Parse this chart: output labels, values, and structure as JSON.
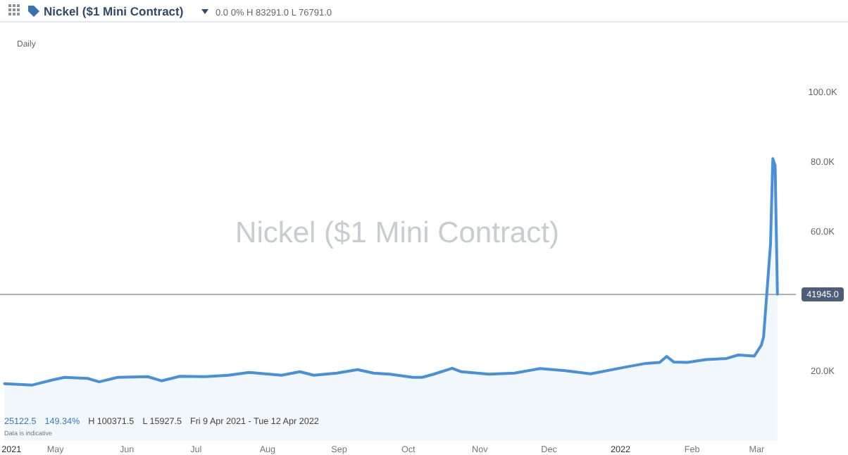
{
  "chart_data": {
    "type": "area",
    "title": "Nickel ($1 Mini Contract)",
    "subtitle": "0.0  0% H 83291.0 L 76791.0",
    "annotations": [
      "Daily",
      "Nickel ($1 Mini Contract)",
      "25122.5",
      "149.34%",
      "H 100371.5",
      "L 15927.5",
      "Fri 9 Apr 2021 - Tue 12 Apr 2022",
      "Data is indicative"
    ],
    "x": [
      "2021-04-09",
      "2021-04-21",
      "2021-04-30",
      "2021-05-05",
      "2021-05-15",
      "2021-05-20",
      "2021-05-28",
      "2021-06-10",
      "2021-06-16",
      "2021-06-24",
      "2021-07-05",
      "2021-07-15",
      "2021-07-24",
      "2021-08-07",
      "2021-08-15",
      "2021-08-21",
      "2021-08-31",
      "2021-09-09",
      "2021-09-16",
      "2021-09-23",
      "2021-10-03",
      "2021-10-07",
      "2021-10-12",
      "2021-10-20",
      "2021-10-24",
      "2021-11-05",
      "2021-11-16",
      "2021-11-27",
      "2021-12-08",
      "2021-12-19",
      "2022-01-02",
      "2022-01-12",
      "2022-01-18",
      "2022-01-21",
      "2022-01-24",
      "2022-01-30",
      "2022-02-07",
      "2022-02-16",
      "2022-02-21",
      "2022-02-28",
      "2022-03-03",
      "2022-03-04",
      "2022-03-07",
      "2022-03-08",
      "2022-03-09",
      "2022-03-10"
    ],
    "series": [
      {
        "color": "#4a90d9",
        "values": [
          16400,
          16000,
          17500,
          18200,
          17900,
          16900,
          18200,
          18400,
          17200,
          18500,
          18400,
          18800,
          19600,
          18800,
          19800,
          18800,
          19400,
          20400,
          19400,
          19100,
          18200,
          18200,
          19100,
          20800,
          19800,
          19100,
          19400,
          20700,
          20100,
          19200,
          21000,
          22200,
          22500,
          24200,
          22600,
          22500,
          23300,
          23600,
          24600,
          24300,
          27400,
          29800,
          56300,
          80800,
          78800,
          42000
        ]
      }
    ],
    "xlim": [
      "2021-04-07",
      "2022-03-18"
    ],
    "xticks": [
      {
        "value": "2021-04-12",
        "label": "2021"
      },
      {
        "value": "2021-05-01",
        "label": "May"
      },
      {
        "value": "2021-06-01",
        "label": "Jun"
      },
      {
        "value": "2021-07-01",
        "label": "Jul"
      },
      {
        "value": "2021-08-01",
        "label": "Aug"
      },
      {
        "value": "2021-09-01",
        "label": "Sep"
      },
      {
        "value": "2021-10-01",
        "label": "Oct"
      },
      {
        "value": "2021-11-01",
        "label": "Nov"
      },
      {
        "value": "2021-12-01",
        "label": "Dec"
      },
      {
        "value": "2022-01-01",
        "label": "2022"
      },
      {
        "value": "2022-02-01",
        "label": "Feb"
      },
      {
        "value": "2022-03-01",
        "label": "Mar"
      }
    ],
    "ylim": [
      0,
      100000
    ],
    "yticks": [
      {
        "value": 20000,
        "label": "20.0K"
      },
      {
        "value": 60000,
        "label": "60.0K"
      },
      {
        "value": 80000,
        "label": "80.0K"
      },
      {
        "value": 100000,
        "label": "100.0K"
      }
    ],
    "ref_lines": [
      {
        "axis": "y",
        "value": 41945,
        "label": "41945.0",
        "color": "#aab0b8"
      }
    ],
    "grid": false
  }
}
